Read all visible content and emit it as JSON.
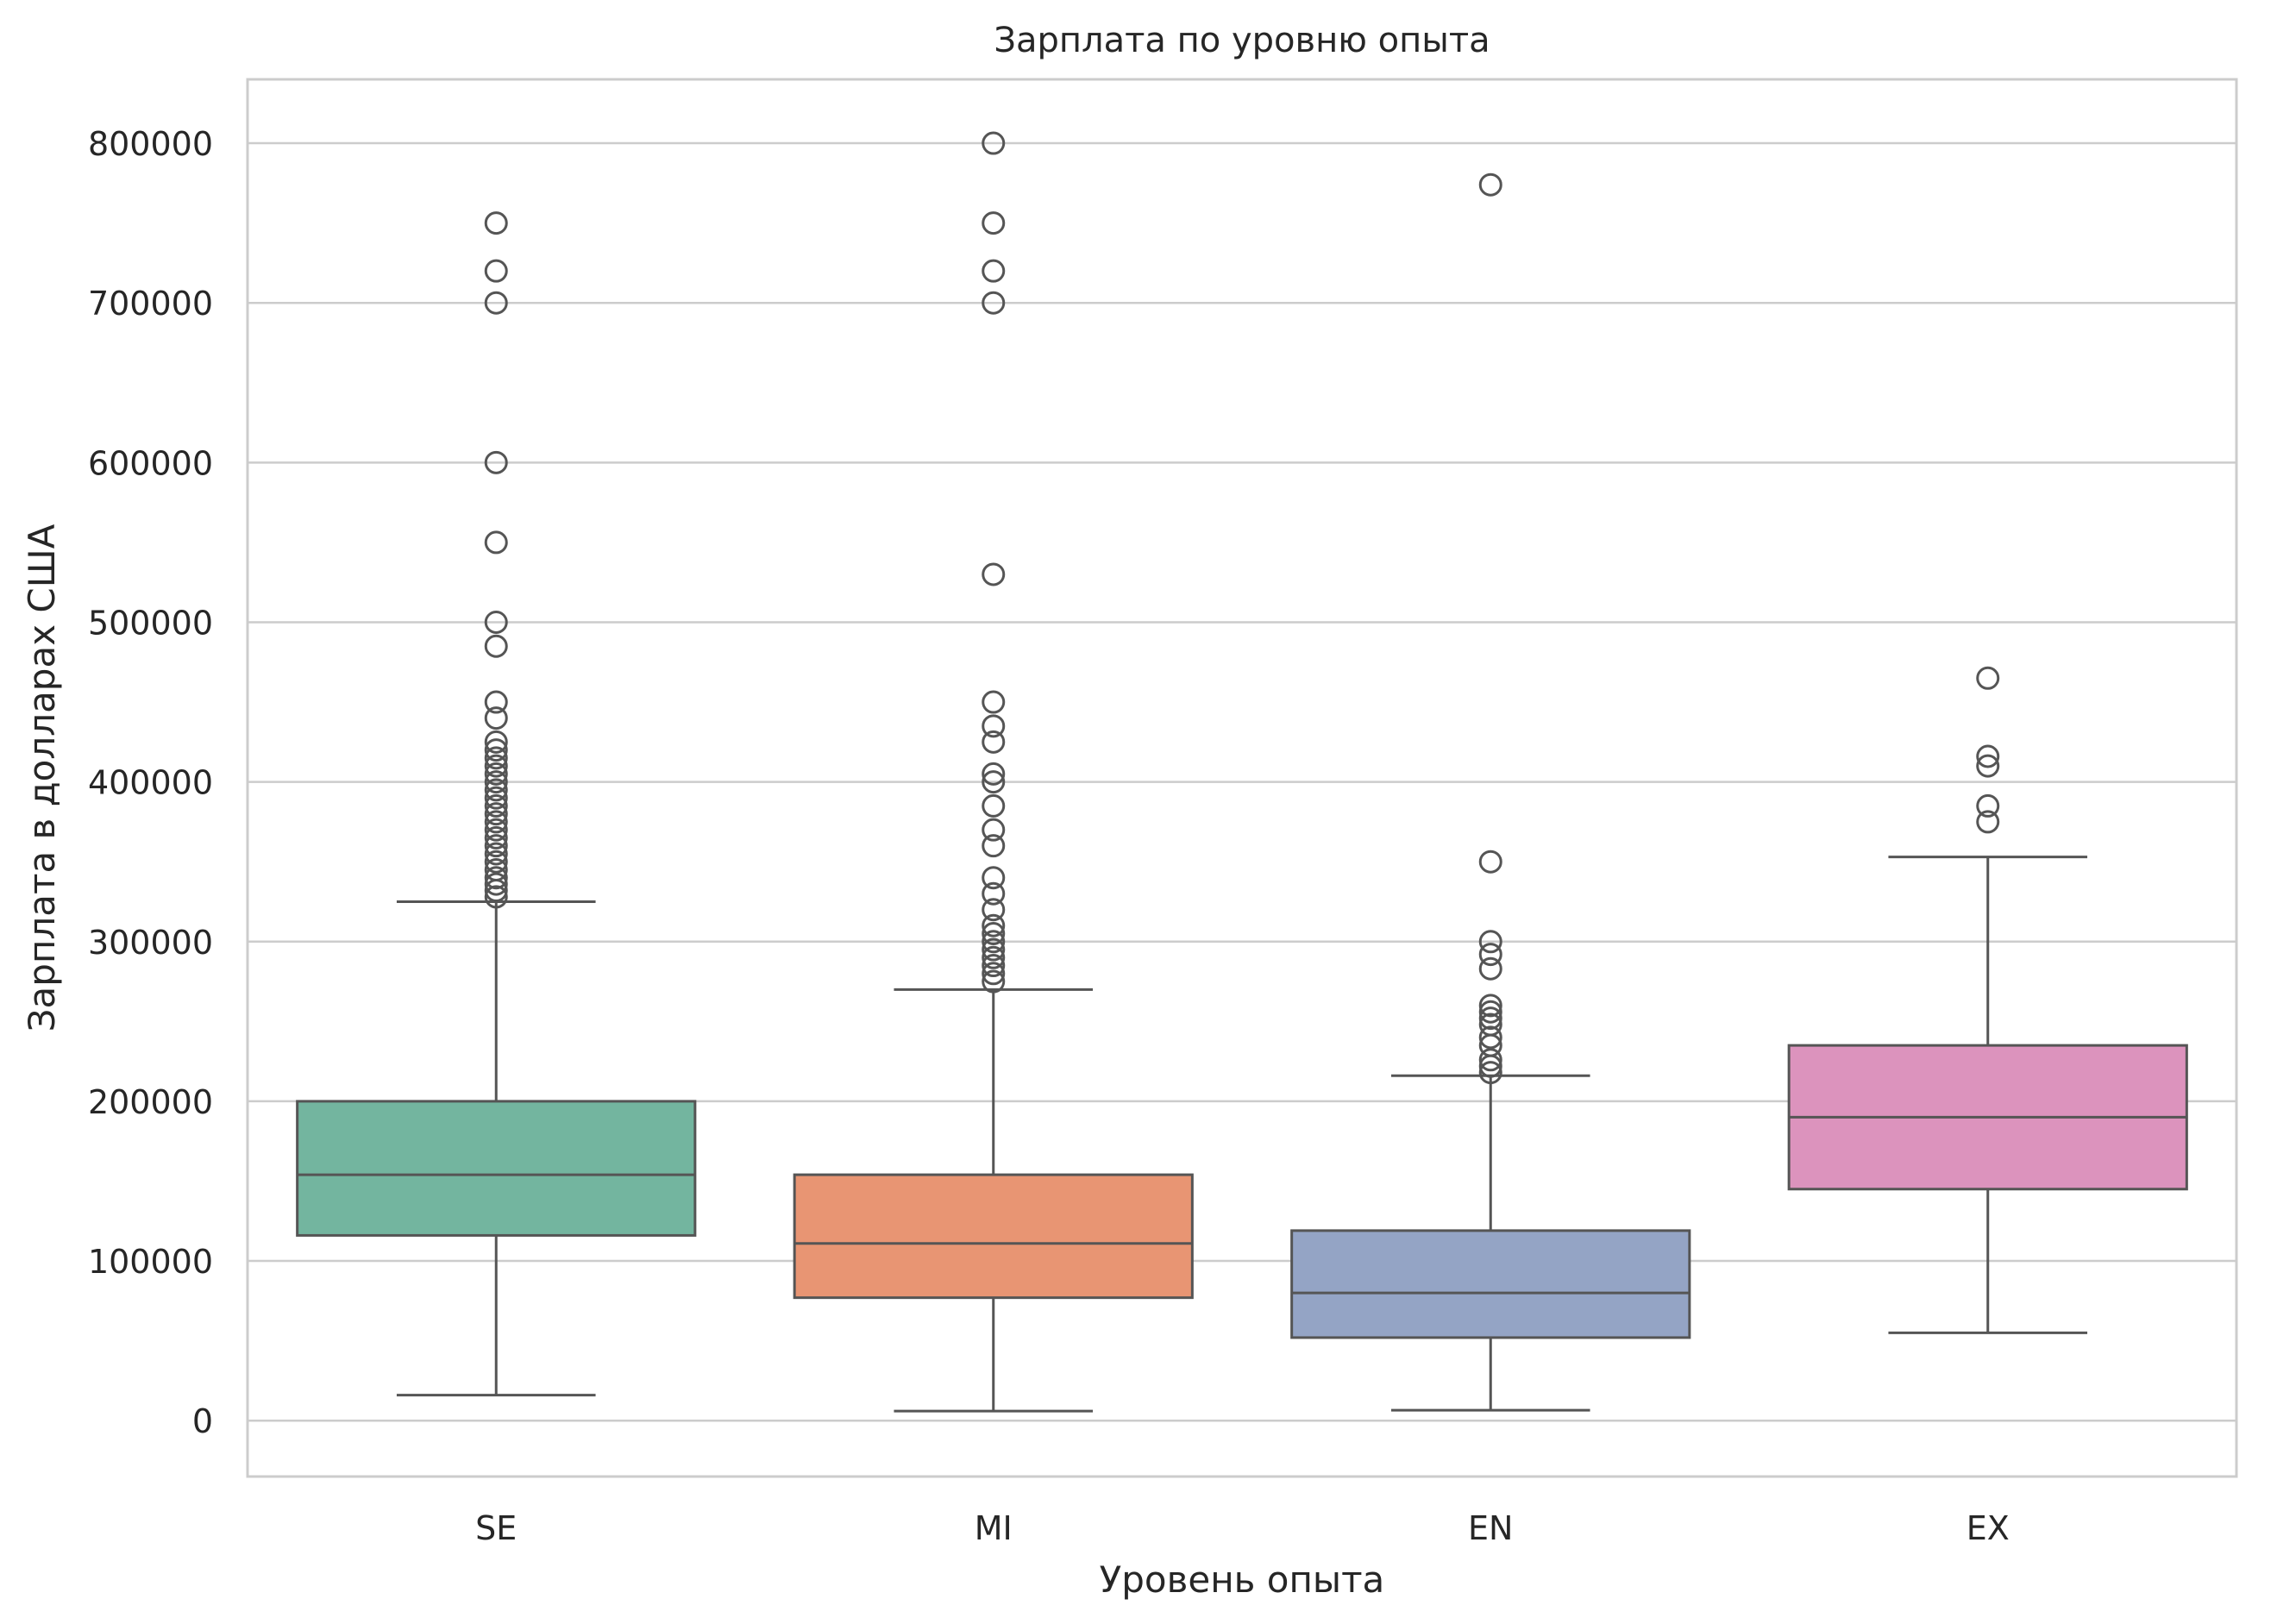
{
  "chart_data": {
    "type": "box",
    "title": "Зарплата по уровню опыта",
    "xlabel": "Уровень опыта",
    "ylabel": "Зарплата в долларах США",
    "ylim": [
      -35000,
      840000
    ],
    "yticks": [
      0,
      100000,
      200000,
      300000,
      400000,
      500000,
      600000,
      700000,
      800000
    ],
    "ytick_labels": [
      "0",
      "100000",
      "200000",
      "300000",
      "400000",
      "500000",
      "600000",
      "700000",
      "800000"
    ],
    "grid": "horizontal",
    "categories": [
      "SE",
      "MI",
      "EN",
      "EX"
    ],
    "boxes": [
      {
        "category": "SE",
        "color": "#73b59f",
        "whisker_low": 16000,
        "q1": 116000,
        "median": 154000,
        "q3": 200000,
        "whisker_high": 325000,
        "outliers": [
          328000,
          332000,
          336000,
          340000,
          345000,
          350000,
          355000,
          360000,
          365000,
          370000,
          375000,
          380000,
          385000,
          390000,
          395000,
          400000,
          405000,
          410000,
          415000,
          420000,
          425000,
          440000,
          450000,
          485000,
          500000,
          550000,
          600000,
          700000,
          720000,
          750000
        ]
      },
      {
        "category": "MI",
        "color": "#e89573",
        "whisker_low": 6000,
        "q1": 77000,
        "median": 111000,
        "q3": 154000,
        "whisker_high": 270000,
        "outliers": [
          275000,
          280000,
          285000,
          290000,
          295000,
          300000,
          305000,
          310000,
          320000,
          330000,
          340000,
          360000,
          370000,
          385000,
          400000,
          405000,
          425000,
          435000,
          450000,
          530000,
          700000,
          720000,
          750000,
          800000
        ]
      },
      {
        "category": "EN",
        "color": "#94a4c5",
        "whisker_low": 6500,
        "q1": 52000,
        "median": 80000,
        "q3": 119000,
        "whisker_high": 216000,
        "outliers": [
          218000,
          222000,
          226000,
          235000,
          240000,
          248000,
          252000,
          256000,
          260000,
          283000,
          292000,
          300000,
          350000,
          774000
        ]
      },
      {
        "category": "EX",
        "color": "#dc93bd",
        "whisker_low": 55000,
        "q1": 145000,
        "median": 190000,
        "q3": 235000,
        "whisker_high": 353000,
        "outliers": [
          375000,
          385000,
          410000,
          416000,
          465000
        ]
      }
    ]
  }
}
